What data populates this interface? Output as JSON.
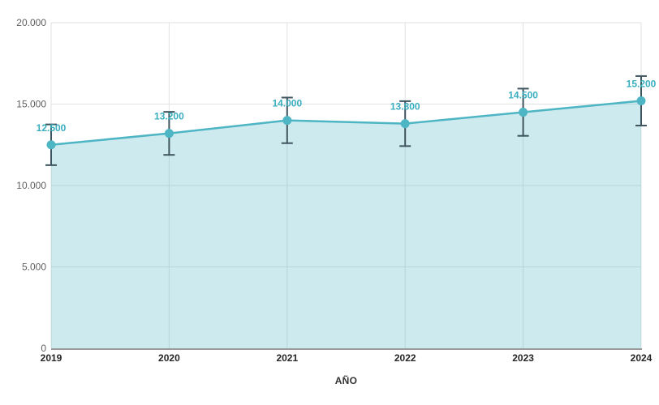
{
  "chart_data": {
    "type": "area",
    "title": "",
    "xlabel": "AÑO",
    "ylabel": "",
    "categories": [
      "2019",
      "2020",
      "2021",
      "2022",
      "2023",
      "2024"
    ],
    "values": [
      12500,
      13200,
      14000,
      13800,
      14500,
      15200
    ],
    "point_labels": [
      "12.500",
      "13.200",
      "14.000",
      "13.800",
      "14.500",
      "15.200"
    ],
    "error_margins": [
      1250,
      1320,
      1400,
      1380,
      1450,
      1520
    ],
    "ylim": [
      0,
      20000
    ],
    "y_ticks": [
      {
        "value": 0,
        "label": "0"
      },
      {
        "value": 5000,
        "label": "5.000"
      },
      {
        "value": 10000,
        "label": "10.000"
      },
      {
        "value": 15000,
        "label": "15.000"
      },
      {
        "value": 20000,
        "label": "20.000"
      }
    ],
    "grid": true,
    "legend": "none",
    "colors": {
      "line": "#4db5c3",
      "point": "#4db5c3",
      "area_fill": "rgba(77,181,195,0.28)",
      "point_label": "#3aaebf",
      "error_bar": "#3e545e",
      "grid": "#e2e2e2",
      "axis_line": "#9a9a9a",
      "y_tick_text": "#5f5f5f",
      "x_tick_text": "#252525",
      "axis_title_text": "#333333"
    }
  }
}
